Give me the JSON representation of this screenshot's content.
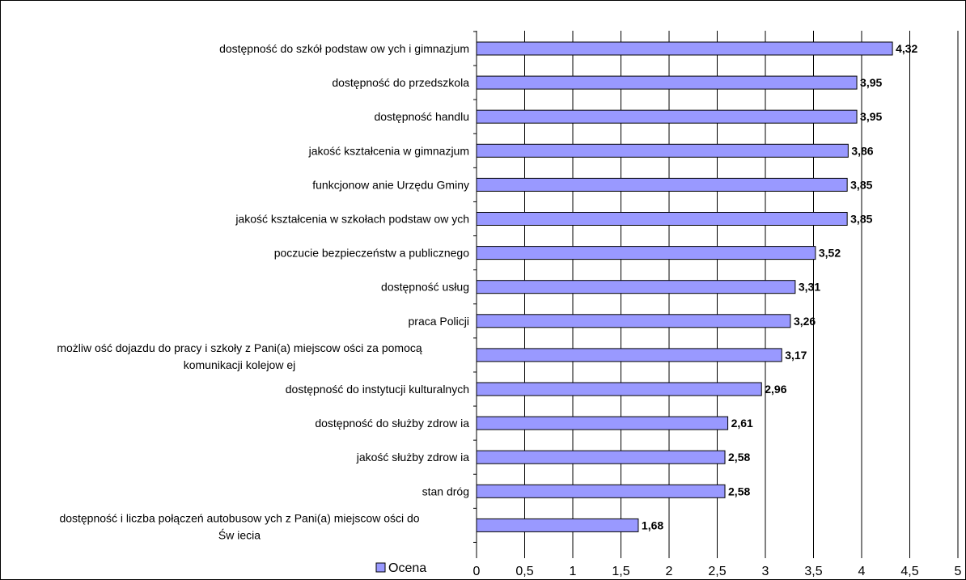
{
  "chart_data": {
    "type": "bar",
    "orientation": "horizontal",
    "categories": [
      "dostępność do szkół podstaw ow ych i gimnazjum",
      "dostępność do przedszkola",
      "dostępność handlu",
      "jakość kształcenia w  gimnazjum",
      "funkcjonow anie Urzędu Gminy",
      "jakość kształcenia w  szkołach podstaw ow ych",
      "poczucie bezpieczeństw a publicznego",
      "dostępność usług",
      "praca Policji",
      [
        "możliw ość dojazdu do pracy i szkoły z Pani(a) miejscow ości za pomocą",
        "komunikacji kolejow ej"
      ],
      "dostępność do instytucji kulturalnych",
      "dostępność do służby zdrow ia",
      "jakość służby zdrow ia",
      "stan dróg",
      [
        "dostępność i liczba połączeń autobusow ych z Pani(a) miejscow ości do",
        "Św iecia"
      ]
    ],
    "values": [
      4.32,
      3.95,
      3.95,
      3.86,
      3.85,
      3.85,
      3.52,
      3.31,
      3.26,
      3.17,
      2.96,
      2.61,
      2.58,
      2.58,
      1.68
    ],
    "value_labels": [
      "4,32",
      "3,95",
      "3,95",
      "3,86",
      "3,85",
      "3,85",
      "3,52",
      "3,31",
      "3,26",
      "3,17",
      "2,96",
      "2,61",
      "2,58",
      "2,58",
      "1,68"
    ],
    "series": [
      {
        "name": "Ocena"
      }
    ],
    "xlim": [
      0,
      5
    ],
    "x_ticks": [
      0,
      0.5,
      1,
      1.5,
      2,
      2.5,
      3,
      3.5,
      4,
      4.5,
      5
    ],
    "x_tick_labels": [
      "0",
      "0,5",
      "1",
      "1,5",
      "2",
      "2,5",
      "3",
      "3,5",
      "4",
      "4,5",
      "5"
    ],
    "grid": "vertical",
    "legend_position": "bottom-left",
    "colors": {
      "bar_fill": "#9999ff",
      "bar_stroke": "#000000",
      "grid": "#000000"
    }
  }
}
